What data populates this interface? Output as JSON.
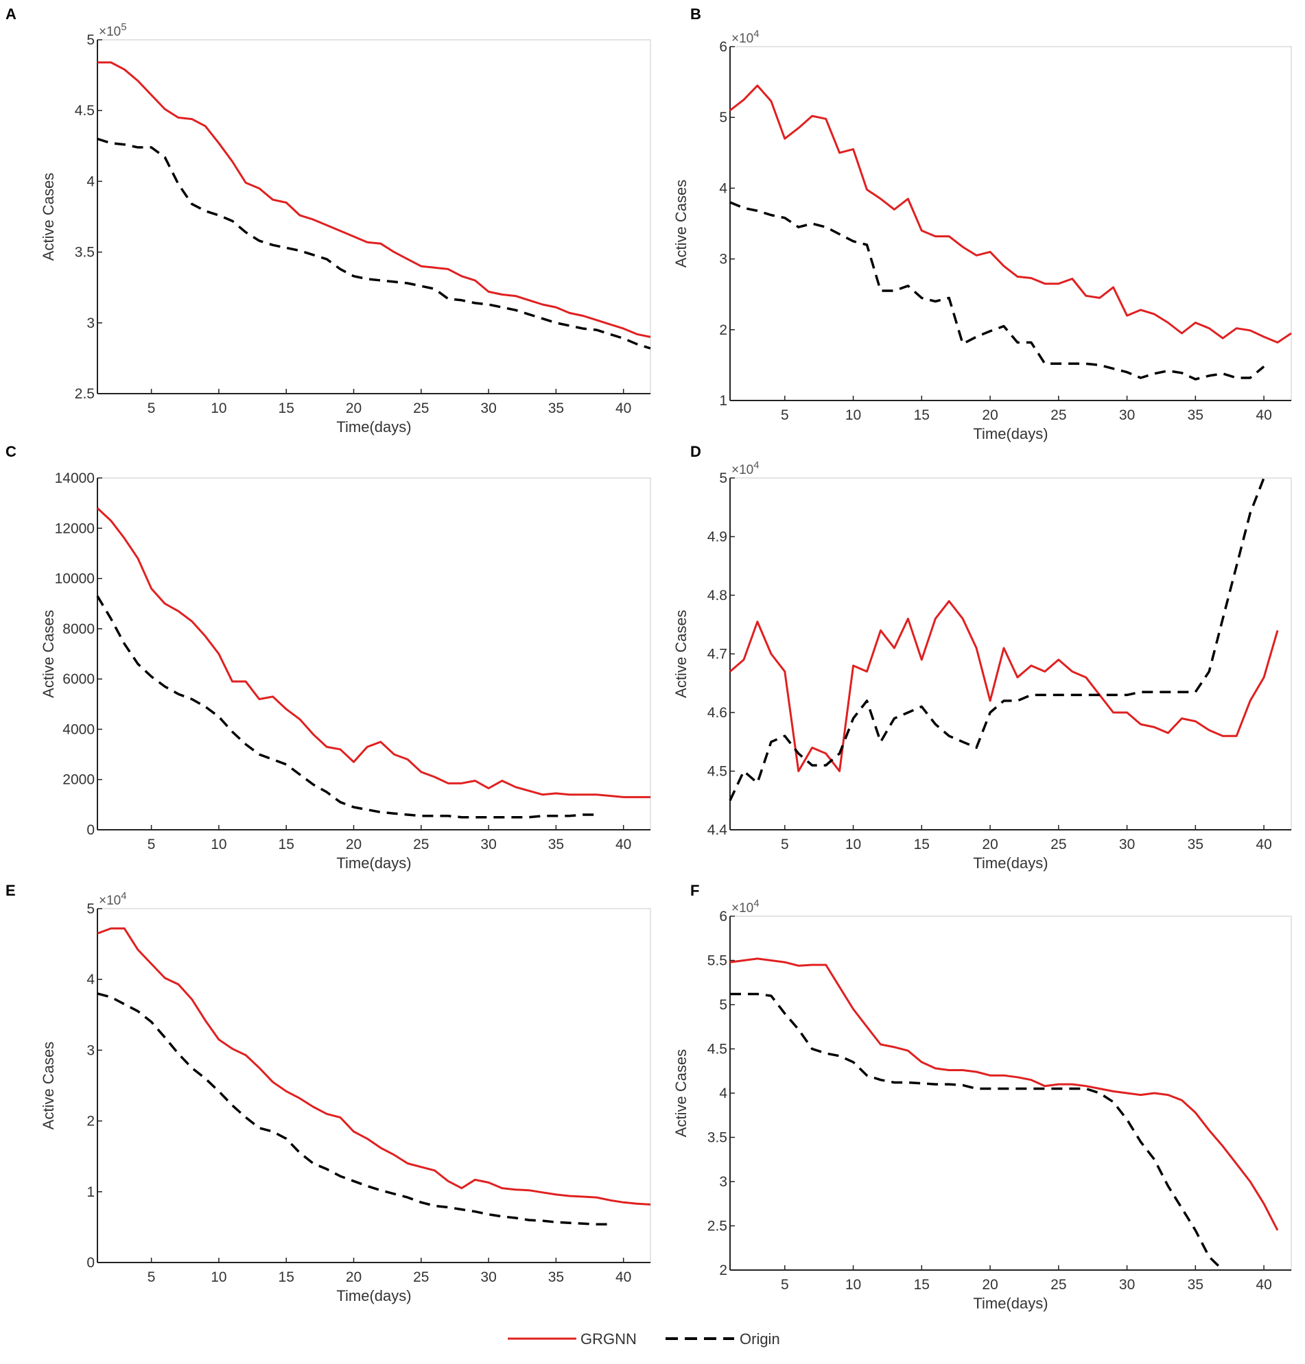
{
  "chart_data": [
    {
      "type": "line",
      "panel": "A",
      "xlabel": "Time(days)",
      "ylabel": "Active Cases",
      "multiplier": "×10^5",
      "xlim": [
        1,
        42
      ],
      "ylim": [
        2.5,
        5
      ],
      "xticks": [
        5,
        10,
        15,
        20,
        25,
        30,
        35,
        40
      ],
      "yticks": [
        2.5,
        3,
        3.5,
        4,
        4.5,
        5
      ],
      "ytick_labels": [
        "2.5",
        "3",
        "3.5",
        "4",
        "4.5",
        "5"
      ],
      "series": [
        {
          "name": "GRGNN",
          "values": [
            4.84,
            4.84,
            4.79,
            4.71,
            4.61,
            4.51,
            4.45,
            4.44,
            4.39,
            4.27,
            4.14,
            3.99,
            3.95,
            3.87,
            3.85,
            3.76,
            3.73,
            3.69,
            3.65,
            3.61,
            3.57,
            3.56,
            3.5,
            3.45,
            3.4,
            3.39,
            3.38,
            3.33,
            3.3,
            3.22,
            3.2,
            3.19,
            3.16,
            3.13,
            3.11,
            3.07,
            3.05,
            3.02,
            2.99,
            2.96,
            2.92,
            2.9
          ]
        },
        {
          "name": "Origin",
          "values": [
            4.3,
            4.27,
            4.26,
            4.24,
            4.24,
            4.17,
            3.98,
            3.84,
            3.79,
            3.76,
            3.72,
            3.64,
            3.58,
            3.55,
            3.53,
            3.51,
            3.48,
            3.45,
            3.38,
            3.33,
            3.31,
            3.3,
            3.29,
            3.28,
            3.26,
            3.24,
            3.17,
            3.16,
            3.14,
            3.13,
            3.11,
            3.09,
            3.06,
            3.03,
            3.0,
            2.98,
            2.96,
            2.95,
            2.92,
            2.89,
            2.85,
            2.82
          ]
        }
      ]
    },
    {
      "type": "line",
      "panel": "B",
      "xlabel": "Time(days)",
      "ylabel": "Active Cases",
      "multiplier": "×10^4",
      "xlim": [
        1,
        42
      ],
      "ylim": [
        1,
        6
      ],
      "xticks": [
        5,
        10,
        15,
        20,
        25,
        30,
        35,
        40
      ],
      "yticks": [
        1,
        2,
        3,
        4,
        5,
        6
      ],
      "ytick_labels": [
        "1",
        "2",
        "3",
        "4",
        "5",
        "6"
      ],
      "series": [
        {
          "name": "GRGNN",
          "values": [
            5.1,
            5.25,
            5.45,
            5.23,
            4.7,
            4.85,
            5.02,
            4.98,
            4.5,
            4.55,
            3.98,
            3.85,
            3.7,
            3.85,
            3.4,
            3.32,
            3.32,
            3.17,
            3.05,
            3.1,
            2.9,
            2.75,
            2.73,
            2.65,
            2.65,
            2.72,
            2.48,
            2.45,
            2.6,
            2.2,
            2.28,
            2.22,
            2.1,
            1.95,
            2.1,
            2.02,
            1.88,
            2.02,
            1.99,
            1.9,
            1.82,
            1.95
          ]
        },
        {
          "name": "Origin",
          "values": [
            3.8,
            3.72,
            3.68,
            3.62,
            3.58,
            3.45,
            3.5,
            3.45,
            3.35,
            3.25,
            3.2,
            2.55,
            2.55,
            2.62,
            2.45,
            2.4,
            2.45,
            1.8,
            1.9,
            1.98,
            2.05,
            1.82,
            1.82,
            1.52,
            1.52,
            1.52,
            1.52,
            1.5,
            1.45,
            1.4,
            1.32,
            1.38,
            1.42,
            1.39,
            1.3,
            1.35,
            1.38,
            1.32,
            1.32,
            1.48
          ]
        }
      ]
    },
    {
      "type": "line",
      "panel": "C",
      "xlabel": "Time(days)",
      "ylabel": "Active Cases",
      "multiplier": "",
      "xlim": [
        1,
        42
      ],
      "ylim": [
        0,
        14000
      ],
      "xticks": [
        5,
        10,
        15,
        20,
        25,
        30,
        35,
        40
      ],
      "yticks": [
        0,
        2000,
        4000,
        6000,
        8000,
        10000,
        12000,
        14000
      ],
      "ytick_labels": [
        "0",
        "2000",
        "4000",
        "6000",
        "8000",
        "10000",
        "12000",
        "14000"
      ],
      "series": [
        {
          "name": "GRGNN",
          "values": [
            12800,
            12300,
            11600,
            10800,
            9600,
            9000,
            8700,
            8300,
            7700,
            7000,
            5900,
            5900,
            5200,
            5300,
            4800,
            4400,
            3800,
            3300,
            3200,
            2700,
            3300,
            3500,
            3000,
            2800,
            2300,
            2100,
            1850,
            1850,
            1950,
            1650,
            1950,
            1700,
            1550,
            1400,
            1450,
            1400,
            1400,
            1400,
            1350,
            1300,
            1300,
            1300
          ]
        },
        {
          "name": "Origin",
          "values": [
            9300,
            8400,
            7400,
            6600,
            6100,
            5700,
            5400,
            5200,
            4900,
            4500,
            3900,
            3400,
            3000,
            2800,
            2600,
            2200,
            1800,
            1500,
            1100,
            900,
            800,
            700,
            650,
            600,
            550,
            550,
            550,
            500,
            500,
            500,
            500,
            500,
            500,
            550,
            550,
            550,
            600,
            600
          ]
        }
      ]
    },
    {
      "type": "line",
      "panel": "D",
      "xlabel": "Time(days)",
      "ylabel": "Active Cases",
      "multiplier": "×10^4",
      "xlim": [
        1,
        42
      ],
      "ylim": [
        4.4,
        5.0
      ],
      "xticks": [
        5,
        10,
        15,
        20,
        25,
        30,
        35,
        40
      ],
      "yticks": [
        4.4,
        4.5,
        4.6,
        4.7,
        4.8,
        4.9,
        5.0
      ],
      "ytick_labels": [
        "4.4",
        "4.5",
        "4.6",
        "4.7",
        "4.8",
        "4.9",
        "5"
      ],
      "series": [
        {
          "name": "GRGNN",
          "values": [
            4.67,
            4.69,
            4.755,
            4.7,
            4.67,
            4.5,
            4.54,
            4.53,
            4.5,
            4.68,
            4.67,
            4.74,
            4.71,
            4.76,
            4.69,
            4.76,
            4.79,
            4.76,
            4.71,
            4.62,
            4.71,
            4.66,
            4.68,
            4.67,
            4.69,
            4.67,
            4.66,
            4.63,
            4.6,
            4.6,
            4.58,
            4.575,
            4.565,
            4.59,
            4.585,
            4.57,
            4.56,
            4.56,
            4.62,
            4.66,
            4.74
          ]
        },
        {
          "name": "Origin",
          "values": [
            4.45,
            4.5,
            4.48,
            4.55,
            4.56,
            4.53,
            4.51,
            4.51,
            4.53,
            4.59,
            4.62,
            4.55,
            4.59,
            4.6,
            4.61,
            4.58,
            4.56,
            4.55,
            4.54,
            4.6,
            4.62,
            4.62,
            4.63,
            4.63,
            4.63,
            4.63,
            4.63,
            4.63,
            4.63,
            4.63,
            4.635,
            4.635,
            4.635,
            4.635,
            4.635,
            4.67,
            4.76,
            4.85,
            4.94,
            5.0
          ]
        }
      ]
    },
    {
      "type": "line",
      "panel": "E",
      "xlabel": "Time(days)",
      "ylabel": "Active Cases",
      "multiplier": "×10^4",
      "xlim": [
        1,
        42
      ],
      "ylim": [
        0,
        5
      ],
      "xticks": [
        5,
        10,
        15,
        20,
        25,
        30,
        35,
        40
      ],
      "yticks": [
        0,
        1,
        2,
        3,
        4,
        5
      ],
      "ytick_labels": [
        "0",
        "1",
        "2",
        "3",
        "4",
        "5"
      ],
      "series": [
        {
          "name": "GRGNN",
          "values": [
            4.65,
            4.72,
            4.72,
            4.42,
            4.22,
            4.02,
            3.93,
            3.72,
            3.42,
            3.15,
            3.02,
            2.93,
            2.75,
            2.55,
            2.42,
            2.32,
            2.2,
            2.1,
            2.05,
            1.85,
            1.75,
            1.62,
            1.52,
            1.4,
            1.35,
            1.3,
            1.15,
            1.05,
            1.17,
            1.13,
            1.05,
            1.03,
            1.02,
            0.99,
            0.96,
            0.94,
            0.93,
            0.92,
            0.88,
            0.85,
            0.83,
            0.82
          ]
        },
        {
          "name": "Origin",
          "values": [
            3.8,
            3.75,
            3.65,
            3.55,
            3.4,
            3.18,
            2.95,
            2.75,
            2.6,
            2.42,
            2.22,
            2.05,
            1.9,
            1.85,
            1.75,
            1.55,
            1.4,
            1.32,
            1.22,
            1.15,
            1.08,
            1.02,
            0.97,
            0.92,
            0.85,
            0.8,
            0.78,
            0.75,
            0.72,
            0.68,
            0.65,
            0.63,
            0.6,
            0.59,
            0.57,
            0.56,
            0.55,
            0.54,
            0.54
          ]
        }
      ]
    },
    {
      "type": "line",
      "panel": "F",
      "xlabel": "Time(days)",
      "ylabel": "Active Cases",
      "multiplier": "×10^4",
      "xlim": [
        1,
        42
      ],
      "ylim": [
        2,
        6
      ],
      "xticks": [
        5,
        10,
        15,
        20,
        25,
        30,
        35,
        40
      ],
      "yticks": [
        2,
        2.5,
        3,
        3.5,
        4,
        4.5,
        5,
        5.5,
        6
      ],
      "ytick_labels": [
        "2",
        "2.5",
        "3",
        "3.5",
        "4",
        "4.5",
        "5",
        "5.5",
        "6"
      ],
      "series": [
        {
          "name": "GRGNN",
          "values": [
            5.48,
            5.5,
            5.52,
            5.5,
            5.48,
            5.44,
            5.45,
            5.45,
            5.2,
            4.95,
            4.75,
            4.55,
            4.52,
            4.48,
            4.35,
            4.28,
            4.26,
            4.26,
            4.24,
            4.2,
            4.2,
            4.18,
            4.15,
            4.08,
            4.1,
            4.1,
            4.08,
            4.05,
            4.02,
            4.0,
            3.98,
            4.0,
            3.98,
            3.92,
            3.78,
            3.58,
            3.4,
            3.2,
            3.0,
            2.75,
            2.45
          ]
        },
        {
          "name": "Origin",
          "values": [
            5.12,
            5.12,
            5.12,
            5.1,
            4.9,
            4.72,
            4.5,
            4.45,
            4.42,
            4.35,
            4.2,
            4.15,
            4.12,
            4.12,
            4.11,
            4.1,
            4.1,
            4.09,
            4.05,
            4.05,
            4.05,
            4.05,
            4.05,
            4.05,
            4.05,
            4.05,
            4.05,
            4.0,
            3.9,
            3.7,
            3.45,
            3.25,
            2.95,
            2.7,
            2.45,
            2.15,
            1.95
          ]
        }
      ]
    }
  ],
  "legend": {
    "items": [
      {
        "label": "GRGNN",
        "color": "#e02020",
        "style": "solid"
      },
      {
        "label": "Origin",
        "color": "#000000",
        "style": "dashed"
      }
    ]
  },
  "colors": {
    "grgnn": "#e02020",
    "origin": "#000000"
  }
}
